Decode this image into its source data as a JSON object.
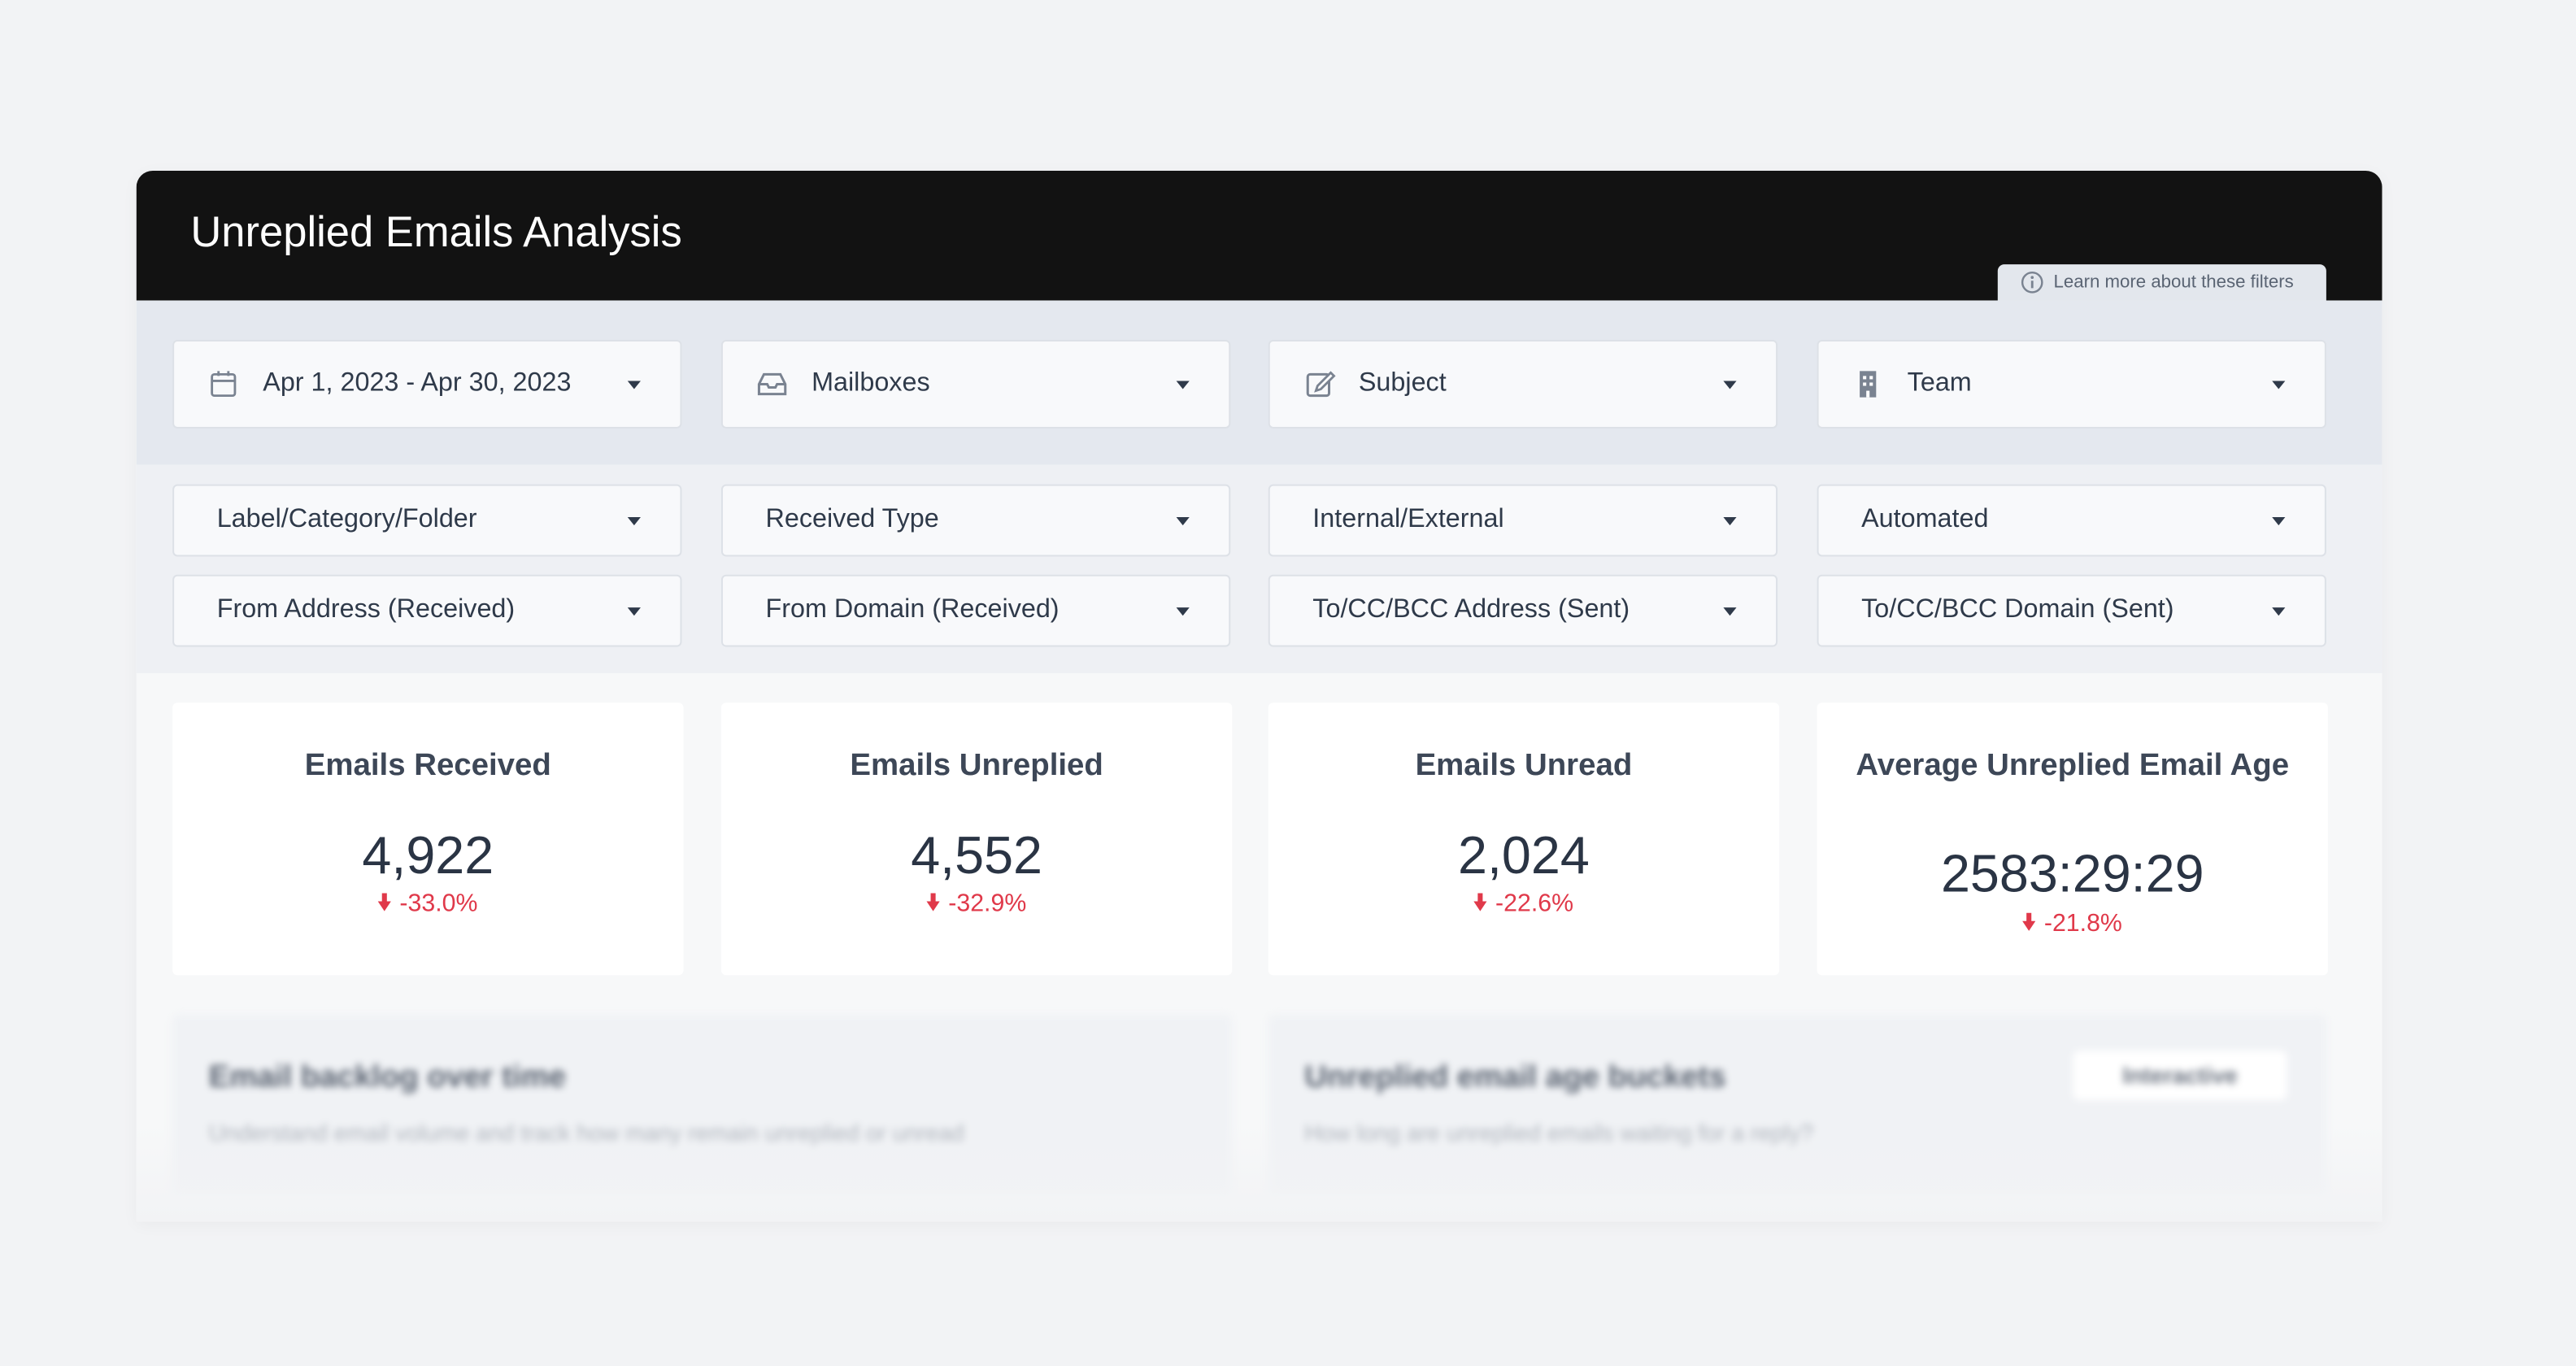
{
  "header": {
    "title": "Unreplied Emails Analysis",
    "info_link": "Learn more about these filters"
  },
  "filters": {
    "primary": [
      "Apr 1, 2023 - Apr 30, 2023",
      "Mailboxes",
      "Subject",
      "Team"
    ],
    "secondary": [
      "Label/Category/Folder",
      "Received Type",
      "Internal/External",
      "Automated",
      "From Address (Received)",
      "From Domain (Received)",
      "To/CC/BCC Address (Sent)",
      "To/CC/BCC Domain (Sent)"
    ]
  },
  "metrics": [
    {
      "title": "Emails Received",
      "value": "4,922",
      "change": "-33.0%"
    },
    {
      "title": "Emails Unreplied",
      "value": "4,552",
      "change": "-32.9%"
    },
    {
      "title": "Emails Unread",
      "value": "2,024",
      "change": "-22.6%"
    },
    {
      "title": "Average Unreplied Email Age",
      "value": "2583:29:29",
      "change": "-21.8%"
    }
  ],
  "sections": [
    {
      "title": "Email backlog over time",
      "subtitle": "Understand email volume and track how many remain unreplied or unread"
    },
    {
      "title": "Unreplied email age buckets",
      "subtitle": "How long are unreplied emails waiting for a reply?",
      "badge": "Interactive"
    }
  ]
}
